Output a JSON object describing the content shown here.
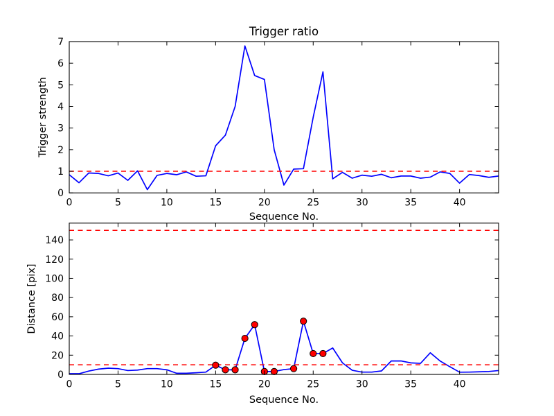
{
  "figure": {
    "background": "#ffffff",
    "frame_color": "#000000",
    "text_color": "#000000"
  },
  "chart_data": [
    {
      "name": "trigger-ratio-plot",
      "type": "line",
      "title": "Trigger ratio",
      "xlabel": "Sequence No.",
      "ylabel": "Trigger strength",
      "xlim": [
        0,
        44
      ],
      "ylim": [
        0,
        7
      ],
      "xticks": [
        0,
        5,
        10,
        15,
        20,
        25,
        30,
        35,
        40
      ],
      "yticks": [
        0,
        1,
        2,
        3,
        4,
        5,
        6,
        7
      ],
      "grid": false,
      "legend": "none",
      "x": [
        0,
        1,
        2,
        3,
        4,
        5,
        6,
        7,
        8,
        9,
        10,
        11,
        12,
        13,
        14,
        15,
        16,
        17,
        18,
        19,
        20,
        21,
        22,
        23,
        24,
        25,
        26,
        27,
        28,
        29,
        30,
        31,
        32,
        33,
        34,
        35,
        36,
        37,
        38,
        39,
        40,
        41,
        42,
        43,
        44
      ],
      "series": [
        {
          "name": "trigger_strength",
          "color": "#0000ff",
          "values": [
            0.84,
            0.47,
            0.92,
            0.9,
            0.79,
            0.92,
            0.58,
            1.02,
            0.15,
            0.81,
            0.9,
            0.84,
            0.97,
            0.77,
            0.79,
            2.18,
            2.67,
            4.0,
            6.8,
            5.43,
            5.25,
            2.0,
            0.36,
            1.1,
            1.12,
            3.5,
            5.6,
            0.65,
            0.95,
            0.68,
            0.82,
            0.77,
            0.86,
            0.7,
            0.78,
            0.78,
            0.68,
            0.73,
            0.97,
            0.9,
            0.45,
            0.85,
            0.8,
            0.72,
            0.78
          ]
        }
      ],
      "threshold_lines": [
        {
          "y": 1.0,
          "color": "#ff0000",
          "style": "dashed"
        }
      ]
    },
    {
      "name": "distance-plot",
      "type": "line",
      "title": "",
      "xlabel": "Sequence No.",
      "ylabel": "Distance [pix]",
      "xlim": [
        0,
        44
      ],
      "ylim": [
        0,
        157.5
      ],
      "xticks": [
        0,
        5,
        10,
        15,
        20,
        25,
        30,
        35,
        40
      ],
      "yticks": [
        0,
        20,
        40,
        60,
        80,
        100,
        120,
        140
      ],
      "grid": false,
      "legend": "none",
      "x": [
        0,
        1,
        2,
        3,
        4,
        5,
        6,
        7,
        8,
        9,
        10,
        11,
        12,
        13,
        14,
        15,
        16,
        17,
        18,
        19,
        20,
        21,
        22,
        23,
        24,
        25,
        26,
        27,
        28,
        29,
        30,
        31,
        32,
        33,
        34,
        35,
        36,
        37,
        38,
        39,
        40,
        41,
        42,
        43,
        44
      ],
      "series": [
        {
          "name": "distance",
          "color": "#0000ff",
          "values": [
            0.7,
            0.7,
            3.5,
            5.5,
            6.5,
            6.0,
            4.0,
            4.5,
            6.0,
            6.0,
            4.8,
            1.2,
            1.2,
            1.7,
            2.4,
            9.6,
            4.8,
            4.8,
            37.5,
            51.8,
            3.0,
            3.0,
            5.0,
            6.0,
            55.4,
            21.7,
            21.7,
            27.5,
            12.0,
            4.3,
            2.4,
            2.4,
            3.6,
            14.0,
            14.0,
            12.0,
            11.5,
            22.5,
            14.0,
            8.0,
            2.3,
            2.4,
            2.7,
            3.0,
            4.0
          ]
        }
      ],
      "markers": {
        "name": "trigger-event-markers",
        "shape": "circle",
        "fill": "#ff0000",
        "edge": "#000000",
        "x": [
          15,
          16,
          17,
          18,
          19,
          20,
          21,
          23,
          24,
          25,
          26
        ],
        "y": [
          9.6,
          4.8,
          4.8,
          37.5,
          51.8,
          3.0,
          3.0,
          6.0,
          55.4,
          21.7,
          21.7
        ]
      },
      "threshold_lines": [
        {
          "y": 150,
          "color": "#ff0000",
          "style": "dashed"
        },
        {
          "y": 10,
          "color": "#ff0000",
          "style": "dashed"
        }
      ]
    }
  ]
}
